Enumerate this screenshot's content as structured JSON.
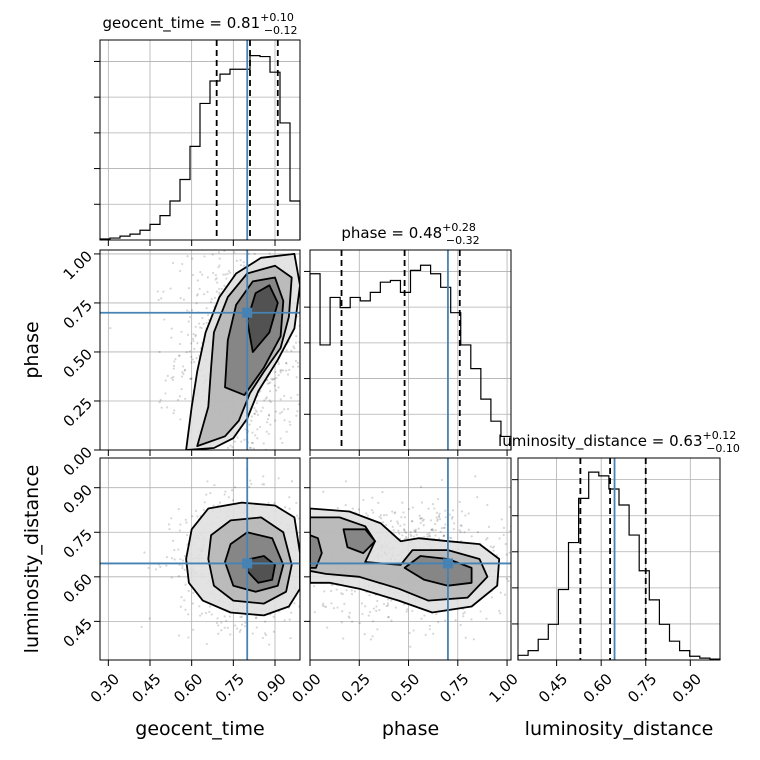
{
  "chart_data": {
    "type": "corner",
    "parameters": [
      "geocent_time",
      "phase",
      "luminosity_distance"
    ],
    "truths": {
      "geocent_time": 0.8,
      "phase": 0.7,
      "luminosity_distance": 0.645
    },
    "colors": {
      "truth": "#4682b4",
      "hist": "#000000",
      "grid": "#b0b0b0"
    },
    "titles": [
      {
        "param": "geocent_time",
        "text": "geocent_time = 0.81",
        "sup": "+0.10",
        "sub": "−0.12"
      },
      {
        "param": "phase",
        "text": "phase = 0.48",
        "sup": "+0.28",
        "sub": "−0.32"
      },
      {
        "param": "luminosity_distance",
        "text": "luminosity_distance = 0.63",
        "sup": "+0.12",
        "sub": "−0.10"
      }
    ],
    "ranges": {
      "geocent_time": [
        0.27,
        0.99
      ],
      "phase": [
        0.0,
        1.02
      ],
      "luminosity_distance": [
        0.32,
        1.0
      ]
    },
    "ticks": {
      "geocent_time": {
        "values": [
          0.3,
          0.45,
          0.6,
          0.75,
          0.9
        ],
        "labels": [
          "0.30",
          "0.45",
          "0.60",
          "0.75",
          "0.90"
        ]
      },
      "phase": {
        "values": [
          0.0,
          0.25,
          0.5,
          0.75,
          1.0
        ],
        "labels": [
          "0.00",
          "0.25",
          "0.50",
          "0.75",
          "1.00"
        ]
      },
      "luminosity_distance_x": {
        "values": [
          0.45,
          0.6,
          0.75,
          0.9
        ],
        "labels": [
          "0.45",
          "0.60",
          "0.75",
          "0.90"
        ]
      },
      "luminosity_distance_y": {
        "values": [
          0.45,
          0.6,
          0.75,
          0.9
        ],
        "labels": [
          "0.45",
          "0.60",
          "0.75",
          "0.90"
        ]
      }
    },
    "axis_labels": {
      "x": [
        "geocent_time",
        "phase",
        "luminosity_distance"
      ],
      "y": [
        "phase",
        "luminosity_distance"
      ]
    },
    "histograms": {
      "geocent_time": {
        "edges": [
          0.27,
          0.306,
          0.342,
          0.378,
          0.414,
          0.45,
          0.486,
          0.522,
          0.558,
          0.594,
          0.63,
          0.666,
          0.702,
          0.738,
          0.774,
          0.81,
          0.846,
          0.882,
          0.918,
          0.954,
          0.99
        ],
        "counts": [
          1,
          2,
          4,
          6,
          10,
          16,
          25,
          40,
          62,
          96,
          140,
          163,
          170,
          175,
          175,
          189,
          188,
          172,
          120,
          40
        ],
        "quantiles": [
          0.69,
          0.81,
          0.91
        ],
        "ymax": 205
      },
      "phase": {
        "edges": [
          0.0,
          0.051,
          0.102,
          0.153,
          0.204,
          0.255,
          0.306,
          0.357,
          0.408,
          0.459,
          0.51,
          0.561,
          0.612,
          0.663,
          0.714,
          0.765,
          0.816,
          0.867,
          0.918,
          0.969,
          1.02
        ],
        "counts": [
          104,
          62,
          90,
          84,
          90,
          88,
          93,
          99,
          100,
          93,
          106,
          109,
          104,
          96,
          81,
          62,
          48,
          30,
          17,
          8
        ],
        "quantiles": [
          0.16,
          0.48,
          0.76
        ],
        "ymax": 118
      },
      "luminosity_distance": {
        "edges": [
          0.32,
          0.354,
          0.388,
          0.422,
          0.456,
          0.49,
          0.524,
          0.558,
          0.592,
          0.626,
          0.66,
          0.694,
          0.728,
          0.762,
          0.796,
          0.83,
          0.864,
          0.898,
          0.932,
          0.966,
          1.0
        ],
        "counts": [
          5,
          10,
          22,
          38,
          75,
          125,
          172,
          200,
          196,
          182,
          165,
          133,
          95,
          64,
          38,
          20,
          10,
          4,
          2,
          1
        ],
        "quantiles": [
          0.53,
          0.63,
          0.75
        ],
        "ymax": 215
      }
    },
    "contours_2d": [
      {
        "x": "geocent_time",
        "y": "phase",
        "levels": [
          {
            "weight": 0.15,
            "points": [
              [
                0.58,
                0.0
              ],
              [
                0.68,
                0.01
              ],
              [
                0.75,
                0.06
              ],
              [
                0.8,
                0.16
              ],
              [
                0.84,
                0.3
              ],
              [
                0.91,
                0.46
              ],
              [
                0.97,
                0.62
              ],
              [
                0.99,
                0.84
              ],
              [
                0.97,
                1.0
              ],
              [
                0.85,
                0.98
              ],
              [
                0.76,
                0.9
              ],
              [
                0.7,
                0.78
              ],
              [
                0.65,
                0.6
              ],
              [
                0.62,
                0.4
              ],
              [
                0.6,
                0.22
              ]
            ]
          },
          {
            "weight": 0.35,
            "points": [
              [
                0.62,
                0.02
              ],
              [
                0.72,
                0.07
              ],
              [
                0.77,
                0.15
              ],
              [
                0.81,
                0.29
              ],
              [
                0.86,
                0.4
              ],
              [
                0.92,
                0.52
              ],
              [
                0.95,
                0.68
              ],
              [
                0.96,
                0.88
              ],
              [
                0.9,
                0.94
              ],
              [
                0.8,
                0.9
              ],
              [
                0.73,
                0.78
              ],
              [
                0.68,
                0.6
              ],
              [
                0.67,
                0.42
              ],
              [
                0.66,
                0.22
              ]
            ]
          },
          {
            "weight": 0.6,
            "points": [
              [
                0.72,
                0.32
              ],
              [
                0.79,
                0.28
              ],
              [
                0.86,
                0.42
              ],
              [
                0.92,
                0.58
              ],
              [
                0.93,
                0.76
              ],
              [
                0.9,
                0.88
              ],
              [
                0.82,
                0.86
              ],
              [
                0.76,
                0.74
              ],
              [
                0.73,
                0.56
              ]
            ]
          },
          {
            "weight": 0.85,
            "points": [
              [
                0.82,
                0.5
              ],
              [
                0.88,
                0.6
              ],
              [
                0.91,
                0.75
              ],
              [
                0.88,
                0.84
              ],
              [
                0.83,
                0.8
              ],
              [
                0.8,
                0.66
              ]
            ]
          }
        ]
      },
      {
        "x": "geocent_time",
        "y": "luminosity_distance",
        "levels": [
          {
            "weight": 0.15,
            "points": [
              [
                0.58,
                0.66
              ],
              [
                0.59,
                0.58
              ],
              [
                0.64,
                0.52
              ],
              [
                0.74,
                0.48
              ],
              [
                0.86,
                0.47
              ],
              [
                0.95,
                0.5
              ],
              [
                0.99,
                0.56
              ],
              [
                0.99,
                0.68
              ],
              [
                0.97,
                0.8
              ],
              [
                0.9,
                0.84
              ],
              [
                0.78,
                0.85
              ],
              [
                0.66,
                0.83
              ],
              [
                0.6,
                0.76
              ]
            ]
          },
          {
            "weight": 0.35,
            "points": [
              [
                0.66,
                0.66
              ],
              [
                0.68,
                0.57
              ],
              [
                0.75,
                0.52
              ],
              [
                0.86,
                0.51
              ],
              [
                0.94,
                0.55
              ],
              [
                0.96,
                0.64
              ],
              [
                0.93,
                0.75
              ],
              [
                0.85,
                0.8
              ],
              [
                0.74,
                0.79
              ],
              [
                0.67,
                0.74
              ]
            ]
          },
          {
            "weight": 0.6,
            "points": [
              [
                0.72,
                0.65
              ],
              [
                0.75,
                0.57
              ],
              [
                0.83,
                0.55
              ],
              [
                0.91,
                0.57
              ],
              [
                0.93,
                0.64
              ],
              [
                0.89,
                0.73
              ],
              [
                0.8,
                0.75
              ],
              [
                0.74,
                0.71
              ]
            ]
          },
          {
            "weight": 0.85,
            "points": [
              [
                0.8,
                0.62
              ],
              [
                0.84,
                0.58
              ],
              [
                0.89,
                0.59
              ],
              [
                0.9,
                0.64
              ],
              [
                0.86,
                0.67
              ],
              [
                0.81,
                0.66
              ]
            ]
          }
        ]
      },
      {
        "x": "phase",
        "y": "luminosity_distance",
        "levels": [
          {
            "weight": 0.15,
            "points": [
              [
                0.0,
                0.83
              ],
              [
                0.2,
                0.82
              ],
              [
                0.36,
                0.78
              ],
              [
                0.46,
                0.72
              ],
              [
                0.55,
                0.73
              ],
              [
                0.7,
                0.72
              ],
              [
                0.86,
                0.71
              ],
              [
                0.96,
                0.66
              ],
              [
                0.95,
                0.57
              ],
              [
                0.82,
                0.5
              ],
              [
                0.62,
                0.48
              ],
              [
                0.45,
                0.52
              ],
              [
                0.25,
                0.56
              ],
              [
                0.1,
                0.58
              ],
              [
                0.0,
                0.58
              ]
            ]
          },
          {
            "weight": 0.35,
            "points": [
              [
                0.0,
                0.8
              ],
              [
                0.15,
                0.8
              ],
              [
                0.28,
                0.77
              ],
              [
                0.33,
                0.72
              ],
              [
                0.28,
                0.65
              ],
              [
                0.46,
                0.64
              ],
              [
                0.52,
                0.69
              ],
              [
                0.7,
                0.69
              ],
              [
                0.86,
                0.66
              ],
              [
                0.9,
                0.6
              ],
              [
                0.8,
                0.53
              ],
              [
                0.6,
                0.52
              ],
              [
                0.45,
                0.56
              ],
              [
                0.25,
                0.6
              ],
              [
                0.08,
                0.61
              ],
              [
                0.0,
                0.62
              ]
            ]
          },
          {
            "weight": 0.6,
            "points": [
              [
                0.0,
                0.74
              ],
              [
                0.04,
                0.73
              ],
              [
                0.06,
                0.68
              ],
              [
                0.03,
                0.63
              ],
              [
                0.0,
                0.63
              ]
            ]
          },
          {
            "weight": 0.6,
            "points": [
              [
                0.17,
                0.76
              ],
              [
                0.28,
                0.76
              ],
              [
                0.33,
                0.72
              ],
              [
                0.27,
                0.68
              ],
              [
                0.19,
                0.7
              ]
            ]
          },
          {
            "weight": 0.6,
            "points": [
              [
                0.48,
                0.63
              ],
              [
                0.58,
                0.59
              ],
              [
                0.7,
                0.57
              ],
              [
                0.82,
                0.58
              ],
              [
                0.82,
                0.63
              ],
              [
                0.7,
                0.66
              ],
              [
                0.56,
                0.67
              ]
            ]
          }
        ]
      }
    ]
  }
}
